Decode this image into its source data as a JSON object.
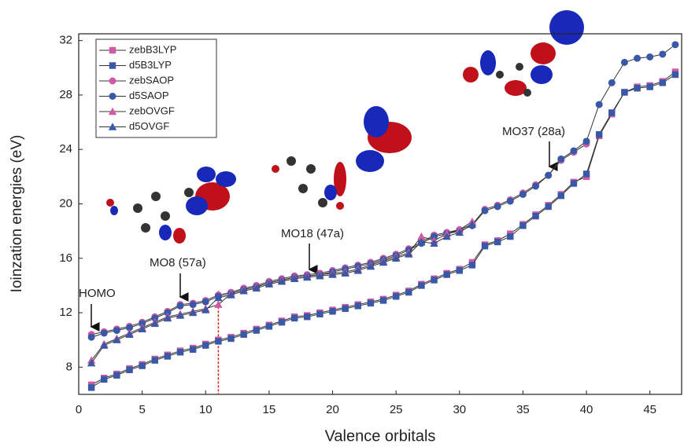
{
  "chart_data": {
    "type": "line",
    "x_label": "Valence orbitals",
    "y_label": "Ioinzation energies (eV)",
    "xlim": [
      0,
      47.5
    ],
    "ylim": [
      6,
      32.5
    ],
    "xticks": [
      0,
      5,
      10,
      15,
      20,
      25,
      30,
      35,
      40,
      45
    ],
    "yticks": [
      8,
      12,
      16,
      20,
      24,
      28,
      32
    ],
    "grid": false,
    "legend": "upper left",
    "vline": {
      "x": 11,
      "color": "#e02020"
    },
    "annotations": [
      "HOMO",
      "MO8 (57a)",
      "MO18 (47a)",
      "MO37 (28a)"
    ],
    "series": [
      {
        "name": "zebB3LYP",
        "color": "#d05aa4",
        "marker": "square",
        "x": [
          1,
          2,
          3,
          4,
          5,
          6,
          7,
          8,
          9,
          10,
          11,
          12,
          13,
          14,
          15,
          16,
          17,
          18,
          19,
          20,
          21,
          22,
          23,
          24,
          25,
          26,
          27,
          28,
          29,
          30,
          31,
          32,
          33,
          34,
          35,
          36,
          37,
          38,
          39,
          40,
          41,
          42,
          43,
          44,
          45,
          46,
          47
        ],
        "values": [
          6.7,
          7.2,
          7.5,
          7.9,
          8.2,
          8.6,
          8.9,
          9.2,
          9.4,
          9.7,
          10.0,
          10.2,
          10.5,
          10.8,
          11.1,
          11.4,
          11.7,
          11.8,
          12.0,
          12.2,
          12.4,
          12.6,
          12.8,
          13.0,
          13.3,
          13.6,
          14.1,
          14.5,
          14.9,
          15.2,
          15.7,
          17.0,
          17.3,
          17.8,
          18.5,
          19.2,
          19.9,
          20.7,
          21.6,
          22.0,
          25.0,
          26.6,
          28.2,
          28.6,
          28.7,
          29.0,
          29.7
        ]
      },
      {
        "name": "d5B3LYP",
        "color": "#3a58a8",
        "marker": "square",
        "x": [
          1,
          2,
          3,
          4,
          5,
          6,
          7,
          8,
          9,
          10,
          11,
          12,
          13,
          14,
          15,
          16,
          17,
          18,
          19,
          20,
          21,
          22,
          23,
          24,
          25,
          26,
          27,
          28,
          29,
          30,
          31,
          32,
          33,
          34,
          35,
          36,
          37,
          38,
          39,
          40,
          41,
          42,
          43,
          44,
          45,
          46,
          47
        ],
        "values": [
          6.5,
          7.1,
          7.4,
          7.8,
          8.1,
          8.5,
          8.8,
          9.1,
          9.3,
          9.6,
          9.9,
          10.1,
          10.4,
          10.7,
          11.0,
          11.3,
          11.6,
          11.7,
          11.9,
          12.1,
          12.3,
          12.5,
          12.7,
          12.9,
          13.2,
          13.5,
          14.0,
          14.4,
          14.8,
          15.1,
          15.5,
          16.9,
          17.2,
          17.6,
          18.4,
          19.1,
          19.8,
          20.6,
          21.5,
          22.2,
          25.1,
          26.7,
          28.2,
          28.5,
          28.6,
          28.9,
          29.5
        ]
      },
      {
        "name": "zebSAOP",
        "color": "#d05aa4",
        "marker": "circle",
        "x": [
          1,
          2,
          3,
          4,
          5,
          6,
          7,
          8,
          9,
          10,
          11,
          12,
          13,
          14,
          15,
          16,
          17,
          18,
          19,
          20,
          21,
          22,
          23,
          24,
          25,
          26,
          27,
          28,
          29,
          30,
          31,
          32,
          33,
          34,
          35,
          36,
          37,
          38,
          39,
          40
        ],
        "values": [
          10.4,
          10.6,
          10.8,
          11.0,
          11.3,
          11.7,
          12.1,
          12.6,
          12.7,
          12.9,
          13.3,
          13.5,
          13.8,
          14.0,
          14.3,
          14.5,
          14.7,
          14.8,
          14.9,
          15.1,
          15.3,
          15.5,
          15.7,
          16.0,
          16.3,
          16.7,
          17.2,
          17.7,
          17.9,
          18.1,
          18.5,
          19.6,
          19.9,
          20.3,
          20.8,
          21.4,
          22.1,
          23.2,
          23.8,
          24.4
        ]
      },
      {
        "name": "d5SAOP",
        "color": "#3a58a8",
        "marker": "circle",
        "x": [
          1,
          2,
          3,
          4,
          5,
          6,
          7,
          8,
          9,
          10,
          11,
          12,
          13,
          14,
          15,
          16,
          17,
          18,
          19,
          20,
          21,
          22,
          23,
          24,
          25,
          26,
          27,
          28,
          29,
          30,
          31,
          32,
          33,
          34,
          35,
          36,
          37,
          38,
          39,
          40,
          41,
          42,
          43,
          44,
          45,
          46,
          47
        ],
        "values": [
          10.2,
          10.5,
          10.7,
          10.9,
          11.2,
          11.6,
          12.0,
          12.5,
          12.6,
          12.8,
          13.2,
          13.4,
          13.7,
          13.9,
          14.2,
          14.4,
          14.6,
          14.7,
          14.8,
          15.0,
          15.2,
          15.4,
          15.6,
          15.9,
          16.2,
          16.6,
          17.1,
          17.6,
          17.8,
          18.0,
          18.4,
          19.5,
          19.8,
          20.2,
          20.7,
          21.3,
          22.1,
          23.3,
          23.9,
          24.6,
          27.3,
          28.9,
          30.4,
          30.7,
          30.8,
          31.0,
          31.7
        ]
      },
      {
        "name": "zebOVGF",
        "color": "#d05aa4",
        "marker": "triangle",
        "x": [
          1,
          2,
          3,
          4,
          5,
          6,
          7,
          8,
          9,
          10,
          11,
          12,
          13,
          14,
          15,
          16,
          17,
          18,
          19,
          20,
          21,
          22,
          23,
          24,
          25,
          26,
          27,
          28,
          29,
          30,
          31
        ],
        "values": [
          8.5,
          9.7,
          10.1,
          10.5,
          10.9,
          11.3,
          11.7,
          11.9,
          12.1,
          12.3,
          12.6,
          13.4,
          13.7,
          13.9,
          14.2,
          14.4,
          14.6,
          14.7,
          14.8,
          14.9,
          15.0,
          15.2,
          15.5,
          15.8,
          16.1,
          16.4,
          17.6,
          17.3,
          17.8,
          18.1,
          18.7
        ]
      },
      {
        "name": "d5OVGF",
        "color": "#3a58a8",
        "marker": "triangle",
        "x": [
          1,
          2,
          3,
          4,
          5,
          6,
          7,
          8,
          9,
          10,
          11,
          12,
          13,
          14,
          15,
          16,
          17,
          18,
          19,
          20,
          21,
          22,
          23,
          24,
          25,
          26,
          27,
          28,
          29,
          30,
          31
        ],
        "values": [
          8.3,
          9.6,
          10.0,
          10.4,
          10.8,
          11.2,
          11.6,
          11.8,
          12.0,
          12.2,
          13.1,
          13.3,
          13.6,
          13.8,
          14.1,
          14.3,
          14.5,
          14.6,
          14.7,
          14.8,
          14.9,
          15.1,
          15.4,
          15.7,
          16.0,
          16.3,
          17.2,
          17.1,
          17.6,
          17.9,
          18.5
        ]
      }
    ]
  }
}
